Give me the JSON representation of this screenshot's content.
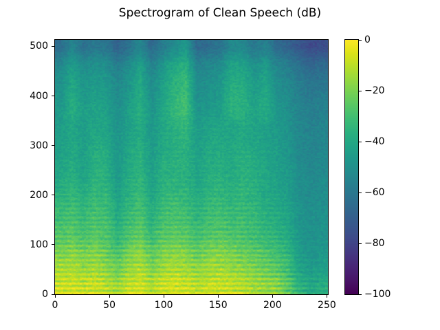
{
  "figure": {
    "background": "#ffffff",
    "text_color": "#000000"
  },
  "chart_data": {
    "type": "heatmap",
    "subtype": "spectrogram",
    "title": "Spectrogram of Clean Speech (dB)",
    "xlabel": "",
    "ylabel": "",
    "xlim": [
      0,
      251
    ],
    "ylim": [
      0,
      513
    ],
    "grid": false,
    "x_ticks": [
      0,
      50,
      100,
      150,
      200,
      250
    ],
    "x_tick_labels": [
      "0",
      "50",
      "100",
      "150",
      "200",
      "250"
    ],
    "y_ticks": [
      0,
      100,
      200,
      300,
      400,
      500
    ],
    "y_tick_labels": [
      "0",
      "100",
      "200",
      "300",
      "400",
      "500"
    ],
    "colorbar": {
      "position": "right",
      "clim": [
        -100,
        0
      ],
      "ticks": [
        0,
        -20,
        -40,
        -60,
        -80,
        -100
      ],
      "tick_labels": [
        "0",
        "−20",
        "−40",
        "−60",
        "−80",
        "−100"
      ]
    },
    "colormap": {
      "name": "viridis",
      "stops": [
        "#440154",
        "#481467",
        "#482576",
        "#453781",
        "#3f4889",
        "#39568c",
        "#33638d",
        "#2d708e",
        "#287d8e",
        "#238a8d",
        "#1f968b",
        "#20a386",
        "#29af7f",
        "#3cbb75",
        "#55c667",
        "#73d055",
        "#95d840",
        "#b8de29",
        "#dde318",
        "#fde725"
      ]
    },
    "grid_origin": "lower-left",
    "grid_shape_freq_time": [
      16,
      24
    ],
    "grid_time_extent": [
      0,
      251
    ],
    "grid_freq_extent": [
      0,
      513
    ],
    "levels_db": [
      [
        -8,
        -7,
        -9,
        -8,
        -10,
        -14,
        -9,
        -7,
        -12,
        -8,
        -7,
        -8,
        -10,
        -9,
        -8,
        -9,
        -10,
        -14,
        -16,
        -18,
        -26,
        -36,
        -40,
        -38
      ],
      [
        -13,
        -12,
        -15,
        -13,
        -17,
        -22,
        -15,
        -12,
        -19,
        -14,
        -12,
        -13,
        -17,
        -14,
        -13,
        -15,
        -17,
        -19,
        -22,
        -25,
        -31,
        -42,
        -45,
        -43
      ],
      [
        -19,
        -17,
        -21,
        -18,
        -22,
        -28,
        -20,
        -16,
        -25,
        -19,
        -17,
        -18,
        -23,
        -19,
        -18,
        -20,
        -22,
        -24,
        -27,
        -30,
        -35,
        -45,
        -48,
        -46
      ],
      [
        -26,
        -24,
        -28,
        -25,
        -28,
        -35,
        -27,
        -23,
        -32,
        -26,
        -24,
        -25,
        -30,
        -26,
        -25,
        -27,
        -28,
        -30,
        -33,
        -35,
        -39,
        -47,
        -49,
        -48
      ],
      [
        -30,
        -28,
        -32,
        -28,
        -29,
        -38,
        -31,
        -27,
        -36,
        -29,
        -28,
        -29,
        -34,
        -30,
        -29,
        -31,
        -31,
        -33,
        -36,
        -38,
        -41,
        -48,
        -50,
        -49
      ],
      [
        -33,
        -31,
        -35,
        -31,
        -32,
        -41,
        -34,
        -30,
        -39,
        -32,
        -31,
        -32,
        -37,
        -33,
        -32,
        -34,
        -33,
        -35,
        -38,
        -40,
        -43,
        -49,
        -51,
        -50
      ],
      [
        -38,
        -35,
        -39,
        -34,
        -35,
        -44,
        -37,
        -33,
        -42,
        -35,
        -34,
        -35,
        -40,
        -36,
        -35,
        -37,
        -35,
        -37,
        -40,
        -42,
        -45,
        -50,
        -52,
        -51
      ],
      [
        -41,
        -38,
        -42,
        -36,
        -37,
        -46,
        -39,
        -35,
        -44,
        -37,
        -36,
        -37,
        -42,
        -38,
        -37,
        -39,
        -36,
        -38,
        -41,
        -43,
        -46,
        -51,
        -53,
        -52
      ],
      [
        -43,
        -39,
        -43,
        -37,
        -38,
        -47,
        -40,
        -36,
        -45,
        -38,
        -37,
        -36,
        -43,
        -39,
        -38,
        -40,
        -37,
        -39,
        -42,
        -44,
        -47,
        -52,
        -54,
        -53
      ],
      [
        -44,
        -40,
        -44,
        -39,
        -40,
        -48,
        -42,
        -38,
        -46,
        -40,
        -38,
        -36,
        -44,
        -41,
        -40,
        -41,
        -39,
        -41,
        -43,
        -45,
        -48,
        -53,
        -55,
        -54
      ],
      [
        -45,
        -41,
        -45,
        -41,
        -42,
        -49,
        -43,
        -39,
        -47,
        -41,
        -37,
        -34,
        -45,
        -42,
        -41,
        -42,
        -40,
        -42,
        -44,
        -46,
        -49,
        -54,
        -56,
        -55
      ],
      [
        -46,
        -38,
        -44,
        -42,
        -43,
        -50,
        -44,
        -37,
        -48,
        -40,
        -34,
        -30,
        -48,
        -46,
        -44,
        -36,
        -36,
        -42,
        -38,
        -47,
        -50,
        -55,
        -57,
        -56
      ],
      [
        -48,
        -39,
        -46,
        -44,
        -45,
        -52,
        -46,
        -38,
        -50,
        -42,
        -35,
        -31,
        -50,
        -48,
        -46,
        -37,
        -37,
        -44,
        -40,
        -49,
        -52,
        -57,
        -59,
        -58
      ],
      [
        -50,
        -41,
        -48,
        -46,
        -47,
        -54,
        -48,
        -40,
        -52,
        -44,
        -37,
        -33,
        -52,
        -50,
        -48,
        -39,
        -39,
        -46,
        -42,
        -51,
        -54,
        -59,
        -62,
        -61
      ],
      [
        -54,
        -45,
        -52,
        -50,
        -51,
        -58,
        -52,
        -44,
        -56,
        -48,
        -41,
        -37,
        -56,
        -54,
        -52,
        -43,
        -43,
        -50,
        -46,
        -55,
        -58,
        -63,
        -67,
        -66
      ],
      [
        -64,
        -55,
        -62,
        -60,
        -61,
        -68,
        -62,
        -54,
        -66,
        -58,
        -52,
        -47,
        -66,
        -64,
        -62,
        -53,
        -53,
        -60,
        -56,
        -65,
        -68,
        -73,
        -78,
        -76
      ]
    ],
    "texture": {
      "harmonic_period": 9.5,
      "harmonic_amp_db": 7.5,
      "harmonic_decay": 200,
      "noise_block_db": 3.2,
      "noise_pixel_db": 2.2,
      "seed": 42
    }
  }
}
